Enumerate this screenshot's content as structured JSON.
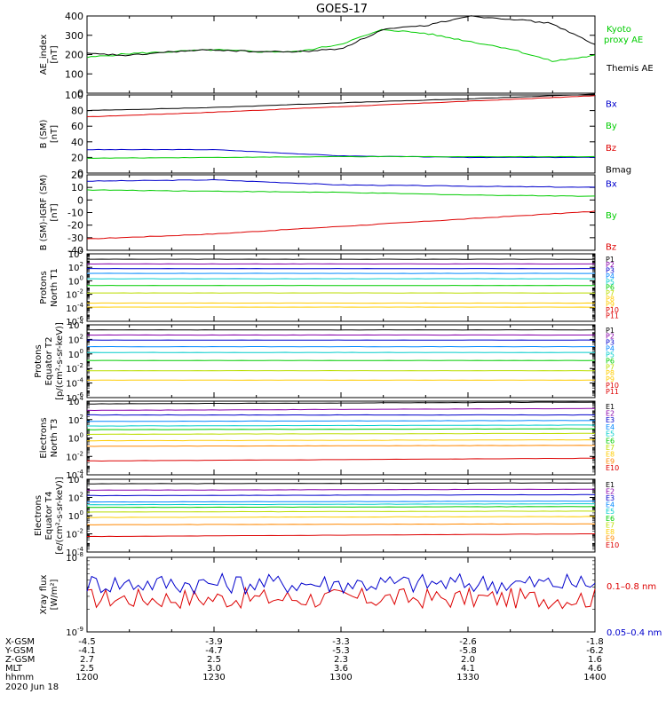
{
  "title": "GOES-17",
  "footer": {
    "row_labels": [
      "X-GSM",
      "Y-GSM",
      "Z-GSM",
      "MLT",
      "hhmm",
      "2020 Jun 18"
    ],
    "columns": [
      {
        "values": [
          "-4.5",
          "-4.1",
          "2.7",
          "2.5",
          "1200"
        ]
      },
      {
        "values": [
          "-3.9",
          "-4.7",
          "2.5",
          "3.0",
          "1230"
        ]
      },
      {
        "values": [
          "-3.3",
          "-5.3",
          "2.3",
          "3.6",
          "1300"
        ]
      },
      {
        "values": [
          "-2.6",
          "-5.8",
          "2.0",
          "4.1",
          "1330"
        ]
      },
      {
        "values": [
          "-1.8",
          "-6.2",
          "1.6",
          "4.6",
          "1400"
        ]
      }
    ]
  },
  "chart_data": [
    {
      "type": "line",
      "ylabel": [
        "AE_index",
        "[nT]"
      ],
      "ylim": [
        0,
        400
      ],
      "yticks": [
        "0",
        "100",
        "200",
        "300",
        "400"
      ],
      "x_hhmm": [
        1200,
        1210,
        1220,
        1230,
        1240,
        1250,
        1300,
        1310,
        1320,
        1330,
        1340,
        1350,
        1400
      ],
      "series": [
        {
          "name": "Kyoto proxy AE",
          "color": "#00cc00",
          "values": [
            185,
            205,
            215,
            225,
            215,
            215,
            255,
            330,
            310,
            270,
            230,
            165,
            195
          ]
        },
        {
          "name": "Themis AE",
          "color": "#000000",
          "values": [
            205,
            195,
            215,
            225,
            215,
            215,
            230,
            330,
            350,
            400,
            385,
            360,
            250
          ]
        }
      ]
    },
    {
      "type": "line",
      "ylabel": [
        "B (SM)",
        "[nT]"
      ],
      "ylim": [
        0,
        100
      ],
      "yticks": [
        "0",
        "20",
        "40",
        "60",
        "80",
        "100"
      ],
      "x_hhmm": [
        1200,
        1230,
        1300,
        1330,
        1400
      ],
      "series": [
        {
          "name": "Bx",
          "color": "#0000cc",
          "values": [
            30,
            30,
            22,
            20,
            20
          ]
        },
        {
          "name": "By",
          "color": "#00cc00",
          "values": [
            19,
            20,
            21,
            21,
            21
          ]
        },
        {
          "name": "Bz",
          "color": "#dd0000",
          "values": [
            72,
            78,
            85,
            92,
            99
          ]
        },
        {
          "name": "Bmag",
          "color": "#000000",
          "values": [
            80,
            84,
            90,
            95,
            101
          ]
        }
      ]
    },
    {
      "type": "line",
      "ylabel": [
        "B (SM)-IGRF (SM)",
        "[nT]"
      ],
      "ylim": [
        -40,
        20
      ],
      "yticks": [
        "-40",
        "-30",
        "-20",
        "-10",
        "0",
        "10",
        "20"
      ],
      "x_hhmm": [
        1200,
        1230,
        1300,
        1330,
        1400
      ],
      "series": [
        {
          "name": "Bx",
          "color": "#0000cc",
          "values": [
            15,
            16,
            12,
            11,
            10
          ]
        },
        {
          "name": "By",
          "color": "#00cc00",
          "values": [
            8,
            7,
            6,
            4,
            3
          ]
        },
        {
          "name": "Bz",
          "color": "#dd0000",
          "values": [
            -31,
            -27,
            -21,
            -15,
            -9
          ]
        }
      ]
    },
    {
      "type": "line",
      "scale": "log",
      "ylabel": [
        "Protons",
        "North T1"
      ],
      "ylim": [
        -6,
        4
      ],
      "yticks_exp": [
        -6,
        -4,
        -2,
        0,
        2,
        4
      ],
      "x_hhmm": [
        1200,
        1400
      ],
      "series": [
        {
          "name": "P1",
          "color": "#000000",
          "values": [
            3.2,
            3.2
          ]
        },
        {
          "name": "P2",
          "color": "#8800aa",
          "values": [
            2.5,
            2.5
          ]
        },
        {
          "name": "P3",
          "color": "#0000cc",
          "values": [
            1.8,
            1.8
          ]
        },
        {
          "name": "P4",
          "color": "#0088ff",
          "values": [
            1.1,
            1.1
          ]
        },
        {
          "name": "P5",
          "color": "#00cccc",
          "values": [
            0.3,
            0.3
          ]
        },
        {
          "name": "P6",
          "color": "#00cc00",
          "values": [
            -0.7,
            -0.7
          ]
        },
        {
          "name": "P7",
          "color": "#bbdd00",
          "values": [
            -1.8,
            -1.8
          ]
        },
        {
          "name": "P8",
          "color": "#ffcc00",
          "values": [
            -3.3,
            -3.3
          ]
        },
        {
          "name": "P9",
          "color": "#ffcc00",
          "values": [
            -3.9,
            -3.9
          ]
        },
        {
          "name": "P10",
          "color": "#dd0000",
          "values": [
            null,
            null
          ]
        },
        {
          "name": "P11",
          "color": "#dd0000",
          "values": [
            null,
            null
          ]
        }
      ]
    },
    {
      "type": "line",
      "scale": "log",
      "ylabel": [
        "Protons",
        "Equator T2",
        "[p/(cm²-s-sr-keV)]"
      ],
      "ylim": [
        -6,
        4
      ],
      "yticks_exp": [
        -6,
        -4,
        -2,
        0,
        2,
        4
      ],
      "x_hhmm": [
        1200,
        1400
      ],
      "series": [
        {
          "name": "P1",
          "color": "#000000",
          "values": [
            3.3,
            3.3
          ]
        },
        {
          "name": "P2",
          "color": "#8800aa",
          "values": [
            2.6,
            2.6
          ]
        },
        {
          "name": "P3",
          "color": "#0000cc",
          "values": [
            1.9,
            1.9
          ]
        },
        {
          "name": "P4",
          "color": "#0088ff",
          "values": [
            1.0,
            1.0
          ]
        },
        {
          "name": "P5",
          "color": "#00cccc",
          "values": [
            0.2,
            0.2
          ]
        },
        {
          "name": "P6",
          "color": "#00cc00",
          "values": [
            -0.9,
            -0.9
          ]
        },
        {
          "name": "P7",
          "color": "#bbdd00",
          "values": [
            -2.3,
            -2.3
          ]
        },
        {
          "name": "P8",
          "color": "#ffcc00",
          "values": [
            -3.6,
            -3.6
          ]
        },
        {
          "name": "P9",
          "color": "#ffcc00",
          "values": [
            null,
            null
          ]
        },
        {
          "name": "P10",
          "color": "#dd0000",
          "values": [
            null,
            null
          ]
        },
        {
          "name": "P11",
          "color": "#dd0000",
          "values": [
            null,
            null
          ]
        }
      ]
    },
    {
      "type": "line",
      "scale": "log",
      "ylabel": [
        "Electrons",
        "North T3"
      ],
      "ylim": [
        -4,
        4
      ],
      "yticks_exp": [
        -4,
        -2,
        0,
        2,
        4
      ],
      "x_hhmm": [
        1200,
        1400
      ],
      "series": [
        {
          "name": "E1",
          "color": "#000000",
          "values": [
            3.7,
            3.9
          ]
        },
        {
          "name": "E2",
          "color": "#8800aa",
          "values": [
            3.0,
            3.2
          ]
        },
        {
          "name": "E3",
          "color": "#0000cc",
          "values": [
            2.5,
            2.5
          ]
        },
        {
          "name": "E4",
          "color": "#0088ff",
          "values": [
            1.8,
            1.9
          ]
        },
        {
          "name": "E5",
          "color": "#00cccc",
          "values": [
            1.3,
            1.4
          ]
        },
        {
          "name": "E6",
          "color": "#00cc00",
          "values": [
            0.9,
            1.0
          ]
        },
        {
          "name": "E7",
          "color": "#bbdd00",
          "values": [
            0.4,
            0.5
          ]
        },
        {
          "name": "E8",
          "color": "#ffcc00",
          "values": [
            -0.3,
            -0.2
          ]
        },
        {
          "name": "E9",
          "color": "#ff8800",
          "values": [
            -0.9,
            -0.8
          ]
        },
        {
          "name": "E10",
          "color": "#dd0000",
          "values": [
            -2.5,
            -2.2
          ]
        }
      ]
    },
    {
      "type": "line",
      "scale": "log",
      "ylabel": [
        "Electrons",
        "Equator T4",
        "[e/(cm²-s-sr-keV)]"
      ],
      "ylim": [
        -4,
        4
      ],
      "yticks_exp": [
        -4,
        -2,
        0,
        2,
        4
      ],
      "x_hhmm": [
        1200,
        1400
      ],
      "series": [
        {
          "name": "E1",
          "color": "#000000",
          "values": [
            3.5,
            3.6
          ]
        },
        {
          "name": "E2",
          "color": "#8800aa",
          "values": [
            2.8,
            2.9
          ]
        },
        {
          "name": "E3",
          "color": "#0000cc",
          "values": [
            2.2,
            2.3
          ]
        },
        {
          "name": "E4",
          "color": "#0088ff",
          "values": [
            1.5,
            1.6
          ]
        },
        {
          "name": "E5",
          "color": "#00cccc",
          "values": [
            1.2,
            1.3
          ]
        },
        {
          "name": "E6",
          "color": "#00cc00",
          "values": [
            0.9,
            1.0
          ]
        },
        {
          "name": "E7",
          "color": "#bbdd00",
          "values": [
            0.4,
            0.5
          ]
        },
        {
          "name": "E8",
          "color": "#ffcc00",
          "values": [
            -0.2,
            -0.1
          ]
        },
        {
          "name": "E9",
          "color": "#ff8800",
          "values": [
            -1.0,
            -0.9
          ]
        },
        {
          "name": "E10",
          "color": "#dd0000",
          "values": [
            -2.3,
            -2.0
          ]
        }
      ]
    },
    {
      "type": "line",
      "scale": "log",
      "ylabel": [
        "Xray flux",
        "[W/m²]"
      ],
      "yticks_exp": [
        -9,
        -8
      ],
      "x_hhmm": [
        1200,
        1400
      ],
      "series": [
        {
          "name": "0.1–0.8 nm",
          "color": "#dd0000",
          "values": [
            -8.55,
            -8.55
          ]
        },
        {
          "name": "0.05–0.4 nm",
          "color": "#0000cc",
          "values": [
            -8.35,
            -8.35
          ]
        }
      ]
    }
  ]
}
